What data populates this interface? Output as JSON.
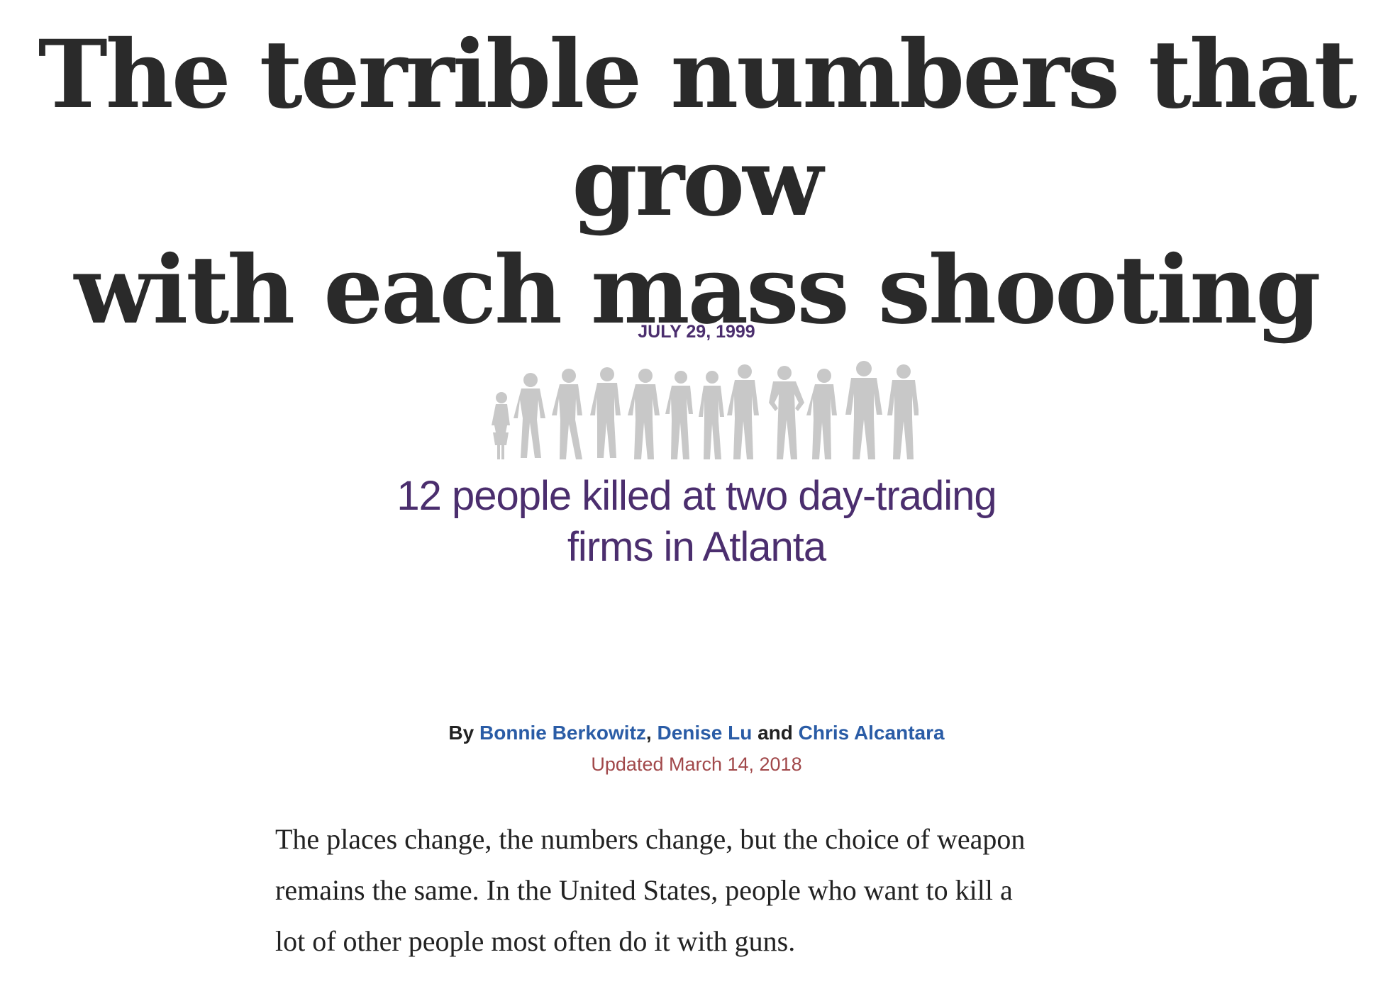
{
  "headline": {
    "line1": "The terrible numbers that grow",
    "line2": "with each mass shooting"
  },
  "event": {
    "date": "JULY 29, 1999",
    "description_line1": "12 people killed at two day-trading",
    "description_line2": "firms in Atlanta",
    "victim_count": 12
  },
  "byline": {
    "prefix": "By",
    "authors": [
      "Bonnie Berkowitz",
      "Denise Lu",
      "Chris Alcantara"
    ],
    "separator": ",",
    "conjunction": "and",
    "updated": "Updated March 14, 2018"
  },
  "article": {
    "lines": [
      "The places change, the numbers change, but the choice of weapon",
      "remains the same. In the United States, people who want to kill a",
      "lot of other people most often do it with guns."
    ]
  },
  "colors": {
    "headline": "#2a2a2a",
    "accent_purple": "#4b2e6e",
    "link_blue": "#2a5ca6",
    "updated_red": "#a1484a",
    "silhouette_gray": "#c8c8c8"
  }
}
